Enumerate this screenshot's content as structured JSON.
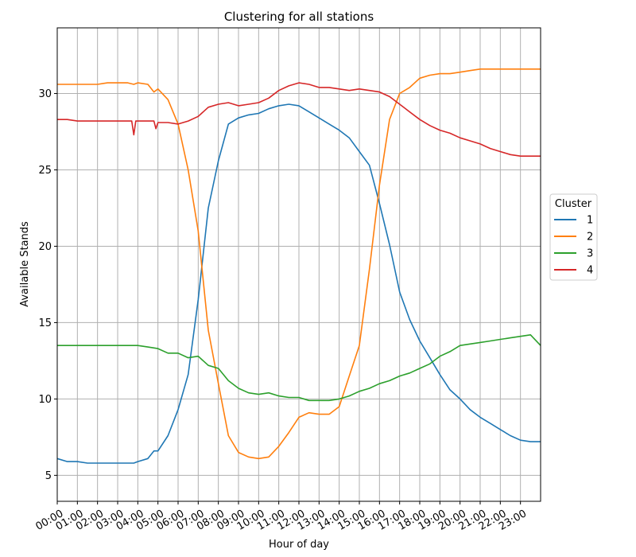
{
  "chart_data": {
    "type": "line",
    "title": "Clustering for all stations",
    "xlabel": "Hour of day",
    "ylabel": "Available Stands",
    "xlim": [
      0,
      24
    ],
    "ylim": [
      3.3,
      34.3
    ],
    "grid": true,
    "x_ticks": [
      "00:00",
      "01:00",
      "02:00",
      "03:00",
      "04:00",
      "05:00",
      "06:00",
      "07:00",
      "08:00",
      "09:00",
      "10:00",
      "11:00",
      "12:00",
      "13:00",
      "14:00",
      "15:00",
      "16:00",
      "17:00",
      "18:00",
      "19:00",
      "20:00",
      "21:00",
      "22:00",
      "23:00"
    ],
    "y_ticks": [
      5,
      10,
      15,
      20,
      25,
      30
    ],
    "legend": {
      "title": "Cluster",
      "placement": "center-right-outside"
    },
    "series": [
      {
        "name": "1",
        "color": "#1f77b4",
        "x": [
          0,
          0.5,
          1,
          1.5,
          2,
          2.5,
          3,
          3.5,
          3.8,
          4,
          4.5,
          4.8,
          5,
          5.5,
          6,
          6.5,
          7,
          7.5,
          8,
          8.5,
          9,
          9.5,
          10,
          10.5,
          11,
          11.5,
          12,
          12.5,
          13,
          13.5,
          14,
          14.5,
          15,
          15.5,
          16,
          16.5,
          17,
          17.5,
          18,
          18.5,
          19,
          19.5,
          20,
          20.5,
          21,
          21.5,
          22,
          22.5,
          23,
          23.5,
          24
        ],
        "values": [
          6.1,
          5.9,
          5.9,
          5.8,
          5.8,
          5.8,
          5.8,
          5.8,
          5.8,
          5.9,
          6.1,
          6.6,
          6.6,
          7.6,
          9.3,
          11.6,
          16.5,
          22.5,
          25.6,
          28.0,
          28.4,
          28.6,
          28.7,
          29.0,
          29.2,
          29.3,
          29.2,
          28.8,
          28.4,
          28.0,
          27.6,
          27.1,
          26.2,
          25.3,
          22.8,
          20.1,
          17.0,
          15.2,
          13.8,
          12.7,
          11.6,
          10.6,
          10.0,
          9.3,
          8.8,
          8.4,
          8.0,
          7.6,
          7.3,
          7.2,
          7.2
        ]
      },
      {
        "name": "2",
        "color": "#ff7f0e",
        "x": [
          0,
          0.5,
          1,
          1.5,
          2,
          2.5,
          3,
          3.5,
          3.8,
          4,
          4.5,
          4.8,
          5,
          5.5,
          6,
          6.5,
          7,
          7.5,
          8,
          8.5,
          9,
          9.5,
          10,
          10.5,
          11,
          11.5,
          12,
          12.5,
          13,
          13.5,
          14,
          14.5,
          15,
          15.5,
          16,
          16.5,
          17,
          17.5,
          18,
          18.5,
          19,
          19.5,
          20,
          20.5,
          21,
          21.5,
          22,
          22.5,
          23,
          23.5,
          24
        ],
        "values": [
          30.6,
          30.6,
          30.6,
          30.6,
          30.6,
          30.7,
          30.7,
          30.7,
          30.6,
          30.7,
          30.6,
          30.1,
          30.3,
          29.6,
          28.0,
          25.0,
          21.0,
          14.5,
          11.0,
          7.6,
          6.5,
          6.2,
          6.1,
          6.2,
          6.9,
          7.8,
          8.8,
          9.1,
          9.0,
          9.0,
          9.5,
          11.5,
          13.5,
          18.5,
          24.0,
          28.3,
          30.0,
          30.4,
          31.0,
          31.2,
          31.3,
          31.3,
          31.4,
          31.5,
          31.6,
          31.6,
          31.6,
          31.6,
          31.6,
          31.6,
          31.6
        ]
      },
      {
        "name": "3",
        "color": "#2ca02c",
        "x": [
          0,
          0.5,
          1,
          1.5,
          2,
          2.5,
          3,
          3.5,
          4,
          4.5,
          5,
          5.5,
          6,
          6.5,
          7,
          7.5,
          8,
          8.5,
          9,
          9.5,
          10,
          10.5,
          11,
          11.5,
          12,
          12.5,
          13,
          13.5,
          14,
          14.5,
          15,
          15.5,
          16,
          16.5,
          17,
          17.5,
          18,
          18.5,
          19,
          19.5,
          20,
          20.5,
          21,
          21.5,
          22,
          22.5,
          23,
          23.5,
          24
        ],
        "values": [
          13.5,
          13.5,
          13.5,
          13.5,
          13.5,
          13.5,
          13.5,
          13.5,
          13.5,
          13.4,
          13.3,
          13.0,
          13.0,
          12.7,
          12.8,
          12.2,
          12.0,
          11.2,
          10.7,
          10.4,
          10.3,
          10.4,
          10.2,
          10.1,
          10.1,
          9.9,
          9.9,
          9.9,
          10.0,
          10.2,
          10.5,
          10.7,
          11.0,
          11.2,
          11.5,
          11.7,
          12.0,
          12.3,
          12.8,
          13.1,
          13.5,
          13.6,
          13.7,
          13.8,
          13.9,
          14.0,
          14.1,
          14.2,
          13.5
        ]
      },
      {
        "name": "4",
        "color": "#d62728",
        "x": [
          0,
          0.5,
          1,
          1.5,
          2,
          2.5,
          3,
          3.5,
          3.7,
          3.8,
          3.9,
          4,
          4.5,
          4.8,
          4.9,
          5,
          5.5,
          6,
          6.5,
          7,
          7.5,
          8,
          8.5,
          9,
          9.5,
          10,
          10.5,
          11,
          11.5,
          12,
          12.5,
          13,
          13.5,
          14,
          14.5,
          15,
          15.5,
          16,
          16.5,
          17,
          17.5,
          18,
          18.5,
          19,
          19.5,
          20,
          20.5,
          21,
          21.5,
          22,
          22.5,
          23,
          23.5,
          24
        ],
        "values": [
          28.3,
          28.3,
          28.2,
          28.2,
          28.2,
          28.2,
          28.2,
          28.2,
          28.2,
          27.3,
          28.2,
          28.2,
          28.2,
          28.2,
          27.7,
          28.1,
          28.1,
          28.0,
          28.2,
          28.5,
          29.1,
          29.3,
          29.4,
          29.2,
          29.3,
          29.4,
          29.7,
          30.2,
          30.5,
          30.7,
          30.6,
          30.4,
          30.4,
          30.3,
          30.2,
          30.3,
          30.2,
          30.1,
          29.8,
          29.3,
          28.8,
          28.3,
          27.9,
          27.6,
          27.4,
          27.1,
          26.9,
          26.7,
          26.4,
          26.2,
          26.0,
          25.9,
          25.9,
          25.9
        ]
      }
    ]
  }
}
